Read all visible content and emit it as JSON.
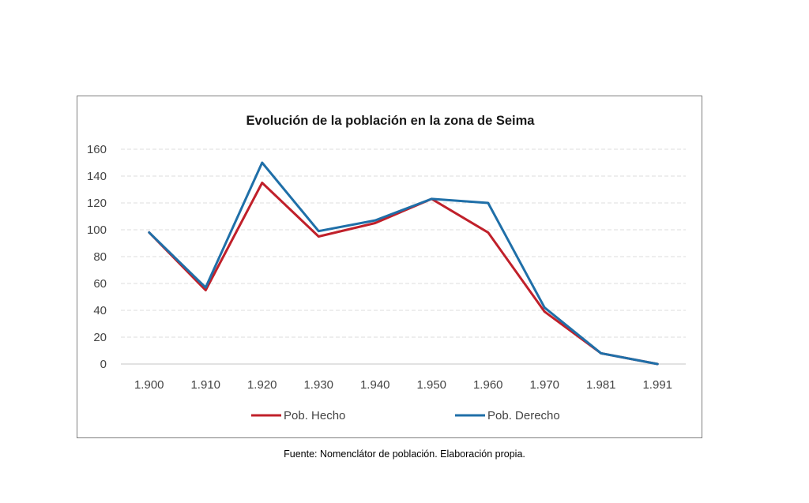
{
  "chart_data": {
    "type": "line",
    "title": "Evolución de la población en la zona de Seima",
    "xlabel": "",
    "ylabel": "",
    "categories": [
      "1.900",
      "1.910",
      "1.920",
      "1.930",
      "1.940",
      "1.950",
      "1.960",
      "1.970",
      "1.981",
      "1.991"
    ],
    "ylim": [
      0,
      160
    ],
    "yticks": [
      0,
      20,
      40,
      60,
      80,
      100,
      120,
      140,
      160
    ],
    "grid": true,
    "legend_position": "bottom",
    "series": [
      {
        "name": "Pob. Hecho",
        "color": "#c0202a",
        "values": [
          98,
          55,
          135,
          95,
          105,
          123,
          98,
          39,
          8,
          0
        ]
      },
      {
        "name": "Pob. Derecho",
        "color": "#1f6fa8",
        "values": [
          98,
          57,
          150,
          99,
          107,
          123,
          120,
          42,
          8,
          0
        ]
      }
    ]
  },
  "source_note": "Fuente: Nomenclátor de población. Elaboración propia."
}
